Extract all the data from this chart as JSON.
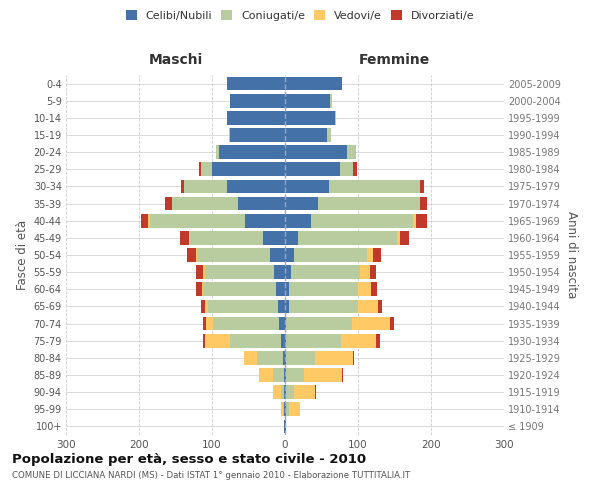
{
  "age_groups": [
    "100+",
    "95-99",
    "90-94",
    "85-89",
    "80-84",
    "75-79",
    "70-74",
    "65-69",
    "60-64",
    "55-59",
    "50-54",
    "45-49",
    "40-44",
    "35-39",
    "30-34",
    "25-29",
    "20-24",
    "15-19",
    "10-14",
    "5-9",
    "0-4"
  ],
  "birth_years": [
    "≤ 1909",
    "1910-1914",
    "1915-1919",
    "1920-1924",
    "1925-1929",
    "1930-1934",
    "1935-1939",
    "1940-1944",
    "1945-1949",
    "1950-1954",
    "1955-1959",
    "1960-1964",
    "1965-1969",
    "1970-1974",
    "1975-1979",
    "1980-1984",
    "1985-1989",
    "1990-1994",
    "1995-1999",
    "2000-2004",
    "2005-2009"
  ],
  "males": {
    "celibi": [
      1,
      1,
      1,
      2,
      3,
      5,
      8,
      10,
      12,
      15,
      20,
      30,
      55,
      65,
      80,
      100,
      90,
      75,
      80,
      75,
      80
    ],
    "coniugati": [
      0,
      2,
      5,
      15,
      35,
      70,
      90,
      95,
      100,
      95,
      100,
      100,
      130,
      90,
      58,
      15,
      5,
      2,
      0,
      0,
      0
    ],
    "vedovi": [
      0,
      3,
      10,
      18,
      18,
      35,
      10,
      5,
      2,
      2,
      2,
      2,
      2,
      0,
      0,
      0,
      0,
      0,
      0,
      0,
      0
    ],
    "divorziati": [
      0,
      0,
      0,
      0,
      0,
      2,
      5,
      5,
      8,
      10,
      12,
      12,
      10,
      10,
      5,
      3,
      0,
      0,
      0,
      0,
      0
    ]
  },
  "females": {
    "nubili": [
      1,
      1,
      1,
      1,
      1,
      2,
      2,
      5,
      5,
      8,
      12,
      18,
      35,
      45,
      60,
      75,
      85,
      58,
      68,
      62,
      78
    ],
    "coniugate": [
      0,
      5,
      12,
      25,
      40,
      75,
      90,
      95,
      95,
      95,
      100,
      135,
      140,
      140,
      125,
      18,
      12,
      5,
      2,
      2,
      0
    ],
    "vedove": [
      0,
      15,
      28,
      52,
      52,
      48,
      52,
      28,
      18,
      14,
      9,
      5,
      5,
      0,
      0,
      0,
      0,
      0,
      0,
      0,
      0
    ],
    "divorziate": [
      0,
      0,
      2,
      2,
      2,
      5,
      5,
      5,
      8,
      8,
      10,
      12,
      15,
      10,
      5,
      5,
      0,
      0,
      0,
      0,
      0
    ]
  },
  "colors": {
    "celibi": "#4472a8",
    "coniugati": "#b8cca0",
    "vedovi": "#ffc966",
    "divorziati": "#c0392b"
  },
  "xlim": 300,
  "title": "Popolazione per età, sesso e stato civile - 2010",
  "subtitle": "COMUNE DI LICCIANA NARDI (MS) - Dati ISTAT 1° gennaio 2010 - Elaborazione TUTTITALIA.IT",
  "ylabel_left": "Fasce di età",
  "ylabel_right": "Anni di nascita",
  "xlabel_left": "Maschi",
  "xlabel_right": "Femmine",
  "bg_color": "#ffffff",
  "grid_color": "#cccccc"
}
